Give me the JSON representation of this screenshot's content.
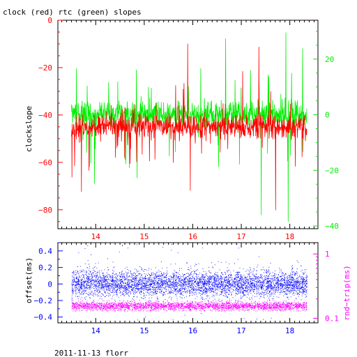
{
  "figure": {
    "title": "clock (red) rtc (green) slopes",
    "footer": "2011-11-13 florr"
  },
  "colors": {
    "clock": "#ff0000",
    "rtc": "#00ee00",
    "offset": "#0000ff",
    "roundtrip": "#ff00ff",
    "axis": "#000000"
  },
  "chart_data": [
    {
      "type": "line",
      "title": "clock (red) rtc (green) slopes",
      "ylabel": "clockslope",
      "xlabel": "",
      "x_range": [
        13.5,
        18.35
      ],
      "xlim": [
        13.22,
        18.58
      ],
      "x_ticks": [
        "14",
        "15",
        "16",
        "17",
        "18"
      ],
      "ylim": [
        -88,
        0
      ],
      "y_ticks": [
        "0",
        "−20",
        "−40",
        "−60",
        "−80"
      ],
      "y2label": "",
      "y2lim": [
        -41,
        34
      ],
      "y2_ticks": [
        "20",
        "0",
        "−20",
        "−40"
      ],
      "grid": false,
      "series": [
        {
          "name": "clock",
          "axis": "left",
          "baseline": -45,
          "noise": 2.5,
          "range_min": -84,
          "range_max": -4
        },
        {
          "name": "rtc",
          "axis": "right",
          "baseline": 0,
          "noise": 2.5,
          "range_min": -39,
          "range_max": 31
        }
      ]
    },
    {
      "type": "scatter",
      "ylabel": "offset(ms)",
      "xlim": [
        13.22,
        18.58
      ],
      "x_ticks": [
        "14",
        "15",
        "16",
        "17",
        "18"
      ],
      "ylim": [
        -0.47,
        0.5
      ],
      "y_ticks": [
        "0.4",
        "0.2",
        "0",
        "−0.2",
        "−0.4"
      ],
      "y2label": "rnd−trip(ms)",
      "y2_scale": "log",
      "y2lim": [
        0.085,
        1.5
      ],
      "y2_ticks": [
        "1",
        "0.1"
      ],
      "grid": false,
      "series": [
        {
          "name": "offset",
          "axis": "left",
          "center": 0.0,
          "spread": 0.08,
          "range_min": -0.45,
          "range_max": 0.48
        },
        {
          "name": "roundtrip",
          "axis": "right",
          "center": 0.155,
          "spread": 0.012,
          "range_min": 0.13,
          "range_max": 0.19
        }
      ]
    }
  ]
}
